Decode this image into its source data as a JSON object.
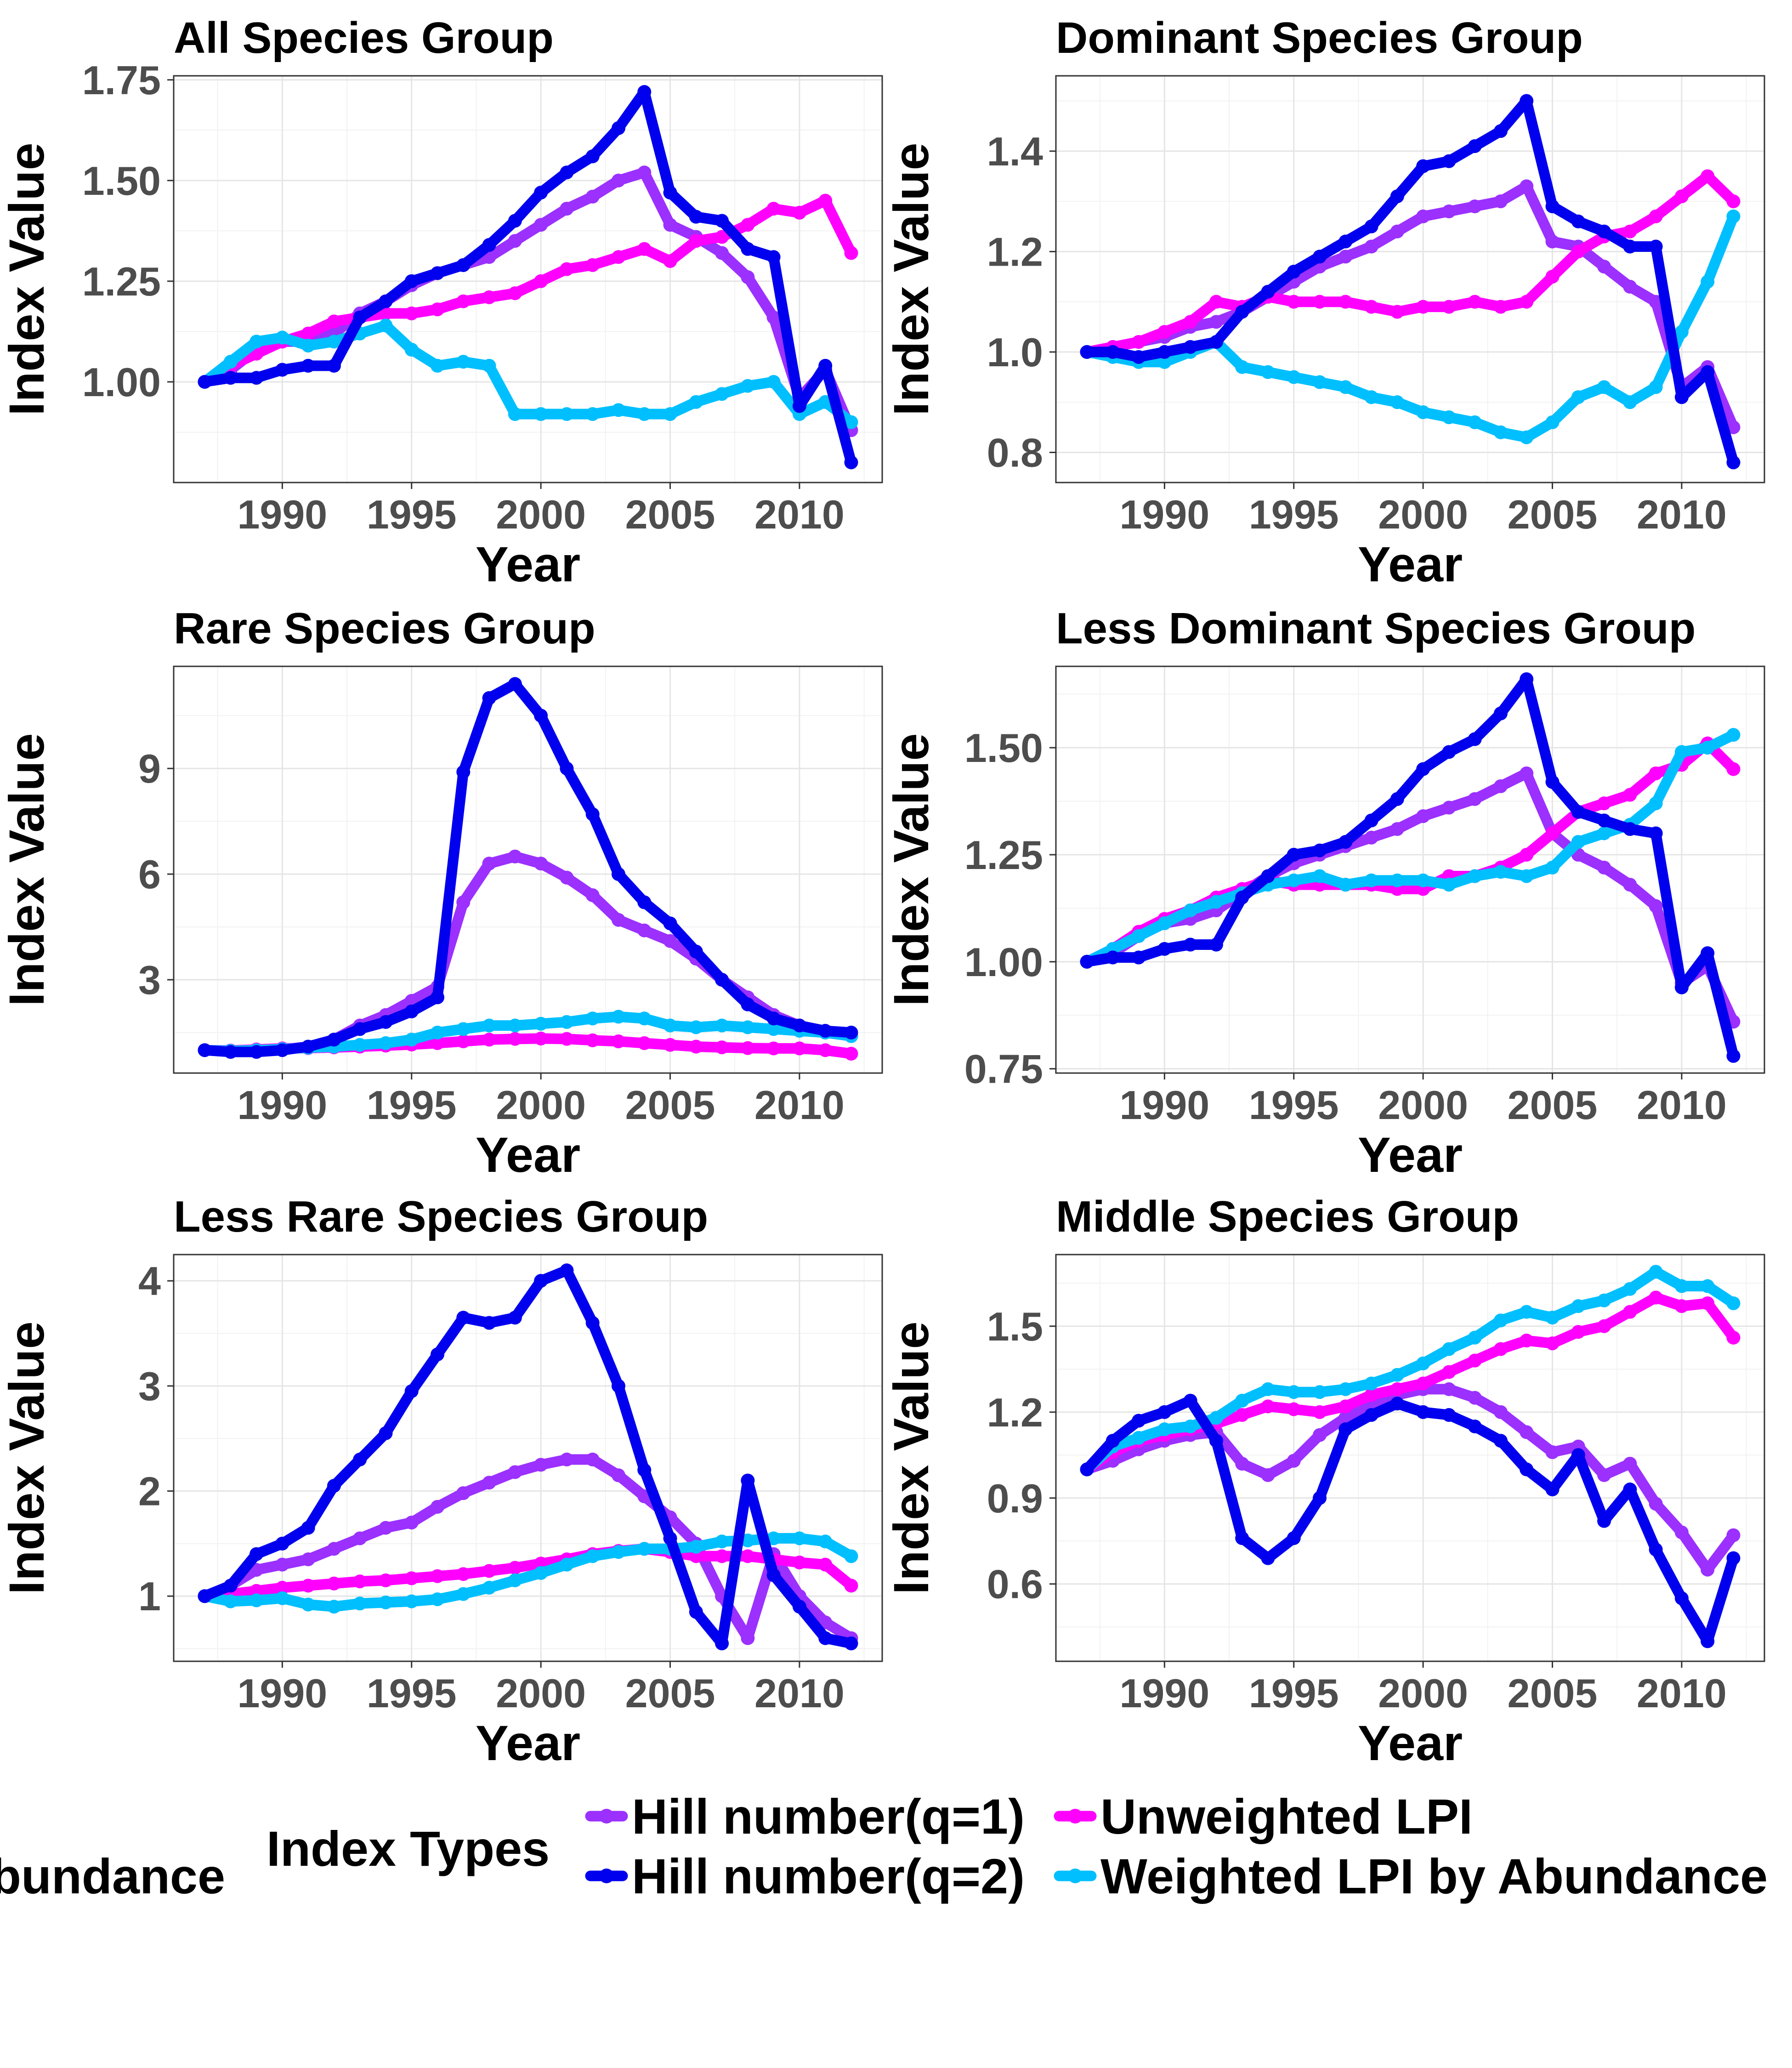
{
  "chart_data": [
    {
      "type": "line",
      "title": "All Species Group",
      "xlabel": "Year",
      "ylabel": "Index Value",
      "x": [
        1987,
        1988,
        1989,
        1990,
        1991,
        1992,
        1993,
        1994,
        1995,
        1996,
        1997,
        1998,
        1999,
        2000,
        2001,
        2002,
        2003,
        2004,
        2005,
        2006,
        2007,
        2008,
        2009,
        2010,
        2011,
        2012
      ],
      "xlim": [
        1985.8,
        2013.2
      ],
      "ylim": [
        0.75,
        1.76
      ],
      "xticks": [
        1990,
        1995,
        2000,
        2005,
        2010
      ],
      "yticks": [
        1.0,
        1.25,
        1.5,
        1.75
      ],
      "ytick_labels": [
        "1.00",
        "1.25",
        "1.50",
        "1.75"
      ],
      "series": [
        {
          "name": "Hill number(q=1)",
          "values": [
            1.0,
            1.03,
            1.08,
            1.1,
            1.1,
            1.12,
            1.17,
            1.2,
            1.24,
            1.27,
            1.29,
            1.31,
            1.35,
            1.39,
            1.43,
            1.46,
            1.5,
            1.52,
            1.39,
            1.36,
            1.32,
            1.26,
            1.16,
            0.96,
            1.03,
            0.88
          ]
        },
        {
          "name": "Hill number(q=2)",
          "values": [
            1.0,
            1.01,
            1.01,
            1.03,
            1.04,
            1.04,
            1.16,
            1.2,
            1.25,
            1.27,
            1.29,
            1.34,
            1.4,
            1.47,
            1.52,
            1.56,
            1.63,
            1.72,
            1.47,
            1.41,
            1.4,
            1.33,
            1.31,
            0.94,
            1.04,
            0.8
          ]
        },
        {
          "name": "Unweighted LPI",
          "values": [
            1.0,
            1.04,
            1.07,
            1.1,
            1.12,
            1.15,
            1.16,
            1.17,
            1.17,
            1.18,
            1.2,
            1.21,
            1.22,
            1.25,
            1.28,
            1.29,
            1.31,
            1.33,
            1.3,
            1.35,
            1.36,
            1.39,
            1.43,
            1.42,
            1.45,
            1.32
          ]
        },
        {
          "name": "Weighted LPI by Abundance",
          "values": [
            1.0,
            1.05,
            1.1,
            1.11,
            1.09,
            1.1,
            1.12,
            1.14,
            1.08,
            1.04,
            1.05,
            1.04,
            0.92,
            0.92,
            0.92,
            0.92,
            0.93,
            0.92,
            0.92,
            0.95,
            0.97,
            0.99,
            1.0,
            0.92,
            0.95,
            0.9
          ]
        }
      ]
    },
    {
      "type": "line",
      "title": "Dominant Species Group",
      "xlabel": "Year",
      "ylabel": "Index Value",
      "x": [
        1987,
        1988,
        1989,
        1990,
        1991,
        1992,
        1993,
        1994,
        1995,
        1996,
        1997,
        1998,
        1999,
        2000,
        2001,
        2002,
        2003,
        2004,
        2005,
        2006,
        2007,
        2008,
        2009,
        2010,
        2011,
        2012
      ],
      "xlim": [
        1985.8,
        2013.2
      ],
      "ylim": [
        0.74,
        1.55
      ],
      "xticks": [
        1990,
        1995,
        2000,
        2005,
        2010
      ],
      "yticks": [
        0.8,
        1.0,
        1.2,
        1.4
      ],
      "ytick_labels": [
        "0.8",
        "1.0",
        "1.2",
        "1.4"
      ],
      "series": [
        {
          "name": "Hill number(q=1)",
          "values": [
            1.0,
            1.01,
            1.02,
            1.03,
            1.05,
            1.06,
            1.08,
            1.11,
            1.14,
            1.17,
            1.19,
            1.21,
            1.24,
            1.27,
            1.28,
            1.29,
            1.3,
            1.33,
            1.22,
            1.21,
            1.17,
            1.13,
            1.1,
            0.93,
            0.97,
            0.85
          ]
        },
        {
          "name": "Hill number(q=2)",
          "values": [
            1.0,
            1.0,
            0.99,
            1.0,
            1.01,
            1.02,
            1.08,
            1.12,
            1.16,
            1.19,
            1.22,
            1.25,
            1.31,
            1.37,
            1.38,
            1.41,
            1.44,
            1.5,
            1.29,
            1.26,
            1.24,
            1.21,
            1.21,
            0.91,
            0.96,
            0.78
          ]
        },
        {
          "name": "Unweighted LPI",
          "values": [
            1.0,
            1.01,
            1.02,
            1.04,
            1.06,
            1.1,
            1.09,
            1.11,
            1.1,
            1.1,
            1.1,
            1.09,
            1.08,
            1.09,
            1.09,
            1.1,
            1.09,
            1.1,
            1.15,
            1.2,
            1.23,
            1.24,
            1.27,
            1.31,
            1.35,
            1.3
          ]
        },
        {
          "name": "Weighted LPI by Abundance",
          "values": [
            1.0,
            0.99,
            0.98,
            0.98,
            1.0,
            1.02,
            0.97,
            0.96,
            0.95,
            0.94,
            0.93,
            0.91,
            0.9,
            0.88,
            0.87,
            0.86,
            0.84,
            0.83,
            0.86,
            0.91,
            0.93,
            0.9,
            0.93,
            1.04,
            1.14,
            1.27
          ]
        }
      ]
    },
    {
      "type": "line",
      "title": "Rare Species Group",
      "xlabel": "Year",
      "ylabel": "Index Value",
      "x": [
        1987,
        1988,
        1989,
        1990,
        1991,
        1992,
        1993,
        1994,
        1995,
        1996,
        1997,
        1998,
        1999,
        2000,
        2001,
        2002,
        2003,
        2004,
        2005,
        2006,
        2007,
        2008,
        2009,
        2010,
        2011,
        2012
      ],
      "xlim": [
        1985.8,
        2013.2
      ],
      "ylim": [
        0.35,
        11.9
      ],
      "xticks": [
        1990,
        1995,
        2000,
        2005,
        2010
      ],
      "yticks": [
        3,
        6,
        9
      ],
      "ytick_labels": [
        "3",
        "6",
        "9"
      ],
      "series": [
        {
          "name": "Hill number(q=1)",
          "values": [
            1.0,
            0.98,
            1.0,
            1.02,
            1.1,
            1.3,
            1.7,
            2.0,
            2.4,
            2.8,
            5.2,
            6.3,
            6.5,
            6.3,
            5.9,
            5.4,
            4.7,
            4.4,
            4.1,
            3.6,
            3.0,
            2.5,
            2.0,
            1.7,
            1.5,
            1.4
          ]
        },
        {
          "name": "Hill number(q=2)",
          "values": [
            1.0,
            0.95,
            0.95,
            1.0,
            1.1,
            1.3,
            1.6,
            1.8,
            2.1,
            2.5,
            8.9,
            11.0,
            11.4,
            10.5,
            9.0,
            7.7,
            6.0,
            5.2,
            4.6,
            3.8,
            3.0,
            2.3,
            1.9,
            1.7,
            1.55,
            1.5
          ]
        },
        {
          "name": "Unweighted LPI",
          "values": [
            1.0,
            0.99,
            1.02,
            1.05,
            1.06,
            1.08,
            1.1,
            1.13,
            1.16,
            1.2,
            1.25,
            1.3,
            1.32,
            1.33,
            1.32,
            1.28,
            1.25,
            1.2,
            1.15,
            1.1,
            1.08,
            1.06,
            1.05,
            1.05,
            1.0,
            0.9
          ]
        },
        {
          "name": "Weighted LPI by Abundance",
          "values": [
            1.0,
            0.98,
            1.0,
            1.03,
            1.07,
            1.1,
            1.15,
            1.2,
            1.3,
            1.5,
            1.6,
            1.7,
            1.7,
            1.75,
            1.8,
            1.9,
            1.95,
            1.9,
            1.7,
            1.65,
            1.7,
            1.65,
            1.6,
            1.55,
            1.5,
            1.4
          ]
        }
      ]
    },
    {
      "type": "line",
      "title": "Less Dominant Species Group",
      "xlabel": "Year",
      "ylabel": "Index Value",
      "x": [
        1987,
        1988,
        1989,
        1990,
        1991,
        1992,
        1993,
        1994,
        1995,
        1996,
        1997,
        1998,
        1999,
        2000,
        2001,
        2002,
        2003,
        2004,
        2005,
        2006,
        2007,
        2008,
        2009,
        2010,
        2011,
        2012
      ],
      "xlim": [
        1985.8,
        2013.2
      ],
      "ylim": [
        0.74,
        1.69
      ],
      "xticks": [
        1990,
        1995,
        2000,
        2005,
        2010
      ],
      "yticks": [
        0.75,
        1.0,
        1.25,
        1.5
      ],
      "ytick_labels": [
        "0.75",
        "1.00",
        "1.25",
        "1.50"
      ],
      "series": [
        {
          "name": "Hill number(q=1)",
          "values": [
            1.0,
            1.02,
            1.06,
            1.09,
            1.1,
            1.12,
            1.16,
            1.2,
            1.23,
            1.25,
            1.27,
            1.29,
            1.31,
            1.34,
            1.36,
            1.38,
            1.41,
            1.44,
            1.3,
            1.25,
            1.22,
            1.18,
            1.13,
            0.95,
            0.99,
            0.86
          ]
        },
        {
          "name": "Hill number(q=2)",
          "values": [
            1.0,
            1.01,
            1.01,
            1.03,
            1.04,
            1.04,
            1.15,
            1.2,
            1.25,
            1.26,
            1.28,
            1.33,
            1.38,
            1.45,
            1.49,
            1.52,
            1.58,
            1.66,
            1.42,
            1.35,
            1.33,
            1.31,
            1.3,
            0.94,
            1.02,
            0.78
          ]
        },
        {
          "name": "Unweighted LPI",
          "values": [
            1.0,
            1.03,
            1.07,
            1.1,
            1.12,
            1.15,
            1.17,
            1.19,
            1.18,
            1.18,
            1.18,
            1.18,
            1.17,
            1.17,
            1.2,
            1.2,
            1.22,
            1.25,
            1.3,
            1.35,
            1.37,
            1.39,
            1.44,
            1.46,
            1.51,
            1.45
          ]
        },
        {
          "name": "Weighted LPI by Abundance",
          "values": [
            1.0,
            1.03,
            1.06,
            1.09,
            1.12,
            1.14,
            1.16,
            1.18,
            1.19,
            1.2,
            1.18,
            1.19,
            1.19,
            1.19,
            1.18,
            1.2,
            1.21,
            1.2,
            1.22,
            1.28,
            1.3,
            1.32,
            1.37,
            1.49,
            1.5,
            1.53
          ]
        }
      ]
    },
    {
      "type": "line",
      "title": "Less Rare Species Group",
      "xlabel": "Year",
      "ylabel": "Index Value",
      "x": [
        1987,
        1988,
        1989,
        1990,
        1991,
        1992,
        1993,
        1994,
        1995,
        1996,
        1997,
        1998,
        1999,
        2000,
        2001,
        2002,
        2003,
        2004,
        2005,
        2006,
        2007,
        2008,
        2009,
        2010,
        2011,
        2012
      ],
      "xlim": [
        1985.8,
        2013.2
      ],
      "ylim": [
        0.38,
        4.25
      ],
      "xticks": [
        1990,
        1995,
        2000,
        2005,
        2010
      ],
      "yticks": [
        1,
        2,
        3,
        4
      ],
      "ytick_labels": [
        "1",
        "2",
        "3",
        "4"
      ],
      "series": [
        {
          "name": "Hill number(q=1)",
          "values": [
            1.0,
            1.1,
            1.25,
            1.3,
            1.35,
            1.45,
            1.55,
            1.65,
            1.7,
            1.85,
            1.98,
            2.08,
            2.18,
            2.25,
            2.3,
            2.3,
            2.15,
            1.95,
            1.75,
            1.5,
            1.0,
            0.6,
            1.4,
            1.0,
            0.75,
            0.6
          ]
        },
        {
          "name": "Hill number(q=2)",
          "values": [
            1.0,
            1.1,
            1.4,
            1.5,
            1.65,
            2.05,
            2.3,
            2.55,
            2.95,
            3.3,
            3.65,
            3.6,
            3.65,
            4.0,
            4.1,
            3.6,
            3.0,
            2.2,
            1.55,
            0.85,
            0.55,
            2.1,
            1.2,
            0.9,
            0.6,
            0.55
          ]
        },
        {
          "name": "Unweighted LPI",
          "values": [
            1.0,
            1.02,
            1.05,
            1.08,
            1.1,
            1.12,
            1.14,
            1.15,
            1.17,
            1.19,
            1.21,
            1.24,
            1.27,
            1.31,
            1.35,
            1.4,
            1.43,
            1.45,
            1.42,
            1.38,
            1.38,
            1.38,
            1.35,
            1.32,
            1.3,
            1.1
          ]
        },
        {
          "name": "Weighted LPI by Abundance",
          "values": [
            1.0,
            0.95,
            0.96,
            0.98,
            0.92,
            0.9,
            0.93,
            0.94,
            0.95,
            0.97,
            1.02,
            1.08,
            1.15,
            1.22,
            1.3,
            1.38,
            1.42,
            1.45,
            1.45,
            1.47,
            1.52,
            1.53,
            1.55,
            1.55,
            1.52,
            1.38
          ]
        }
      ]
    },
    {
      "type": "line",
      "title": "Middle Species Group",
      "xlabel": "Year",
      "ylabel": "Index Value",
      "x": [
        1987,
        1988,
        1989,
        1990,
        1991,
        1992,
        1993,
        1994,
        1995,
        1996,
        1997,
        1998,
        1999,
        2000,
        2001,
        2002,
        2003,
        2004,
        2005,
        2006,
        2007,
        2008,
        2009,
        2010,
        2011,
        2012
      ],
      "xlim": [
        1985.8,
        2013.2
      ],
      "ylim": [
        0.33,
        1.75
      ],
      "xticks": [
        1990,
        1995,
        2000,
        2005,
        2010
      ],
      "yticks": [
        0.6,
        0.9,
        1.2,
        1.5
      ],
      "ytick_labels": [
        "0.6",
        "0.9",
        "1.2",
        "1.5"
      ],
      "series": [
        {
          "name": "Hill number(q=1)",
          "values": [
            1.0,
            1.03,
            1.07,
            1.1,
            1.12,
            1.13,
            1.02,
            0.98,
            1.03,
            1.12,
            1.18,
            1.22,
            1.26,
            1.28,
            1.28,
            1.25,
            1.2,
            1.13,
            1.06,
            1.08,
            0.98,
            1.02,
            0.88,
            0.78,
            0.65,
            0.77
          ]
        },
        {
          "name": "Hill number(q=2)",
          "values": [
            1.0,
            1.1,
            1.17,
            1.2,
            1.24,
            1.1,
            0.76,
            0.69,
            0.76,
            0.9,
            1.14,
            1.19,
            1.23,
            1.2,
            1.19,
            1.15,
            1.1,
            1.0,
            0.93,
            1.05,
            0.82,
            0.93,
            0.72,
            0.55,
            0.4,
            0.69
          ]
        },
        {
          "name": "Unweighted LPI",
          "values": [
            1.0,
            1.06,
            1.1,
            1.12,
            1.14,
            1.16,
            1.19,
            1.22,
            1.21,
            1.2,
            1.22,
            1.26,
            1.28,
            1.3,
            1.34,
            1.38,
            1.42,
            1.45,
            1.44,
            1.48,
            1.5,
            1.55,
            1.6,
            1.57,
            1.58,
            1.46
          ]
        },
        {
          "name": "Weighted LPI by Abundance",
          "values": [
            1.0,
            1.08,
            1.11,
            1.14,
            1.15,
            1.18,
            1.24,
            1.28,
            1.27,
            1.27,
            1.28,
            1.3,
            1.33,
            1.37,
            1.42,
            1.46,
            1.52,
            1.55,
            1.53,
            1.57,
            1.59,
            1.63,
            1.69,
            1.64,
            1.64,
            1.58
          ]
        }
      ]
    }
  ],
  "legend": {
    "title": "Index Types",
    "clipped_fragment": "bundance",
    "placement": "bottom",
    "items": [
      {
        "label": "Hill number(q=1)",
        "color": "#9b30ff"
      },
      {
        "label": "Unweighted LPI",
        "color": "#ff00ff"
      },
      {
        "label": "Hill number(q=2)",
        "color": "#0000ee"
      },
      {
        "label": "Weighted LPI by Abundance",
        "color": "#00bfff"
      }
    ]
  },
  "series_colors": {
    "Hill number(q=1)": "#9b30ff",
    "Hill number(q=2)": "#0000ee",
    "Unweighted LPI": "#ff00ff",
    "Weighted LPI by Abundance": "#00bfff"
  },
  "grid": true
}
